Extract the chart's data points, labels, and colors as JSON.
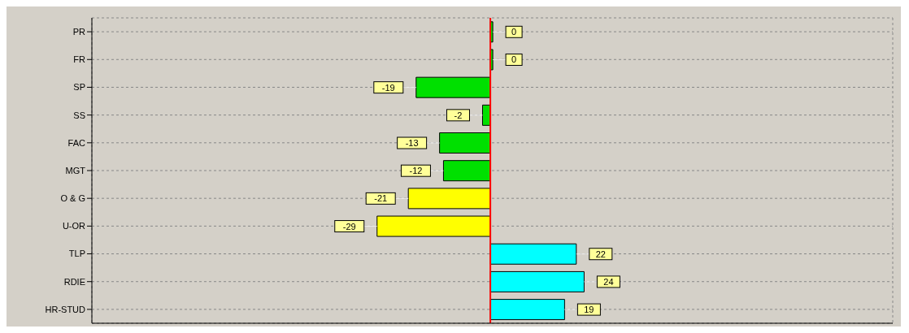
{
  "chart_data": {
    "type": "bar",
    "orientation": "horizontal",
    "categories": [
      "PR",
      "FR",
      "SP",
      "SS",
      "FAC",
      "MGT",
      "O & G",
      "U-OR",
      "TLP",
      "RDIE",
      "HR-STUD"
    ],
    "values": [
      0,
      0,
      -19,
      -2,
      -13,
      -12,
      -21,
      -29,
      22,
      24,
      19
    ],
    "colors": [
      "#00e000",
      "#00e000",
      "#00e000",
      "#00e000",
      "#00e000",
      "#00e000",
      "#ffff00",
      "#ffff00",
      "#00ffff",
      "#00ffff",
      "#00ffff"
    ],
    "xlim": [
      -102,
      103
    ],
    "ref_lines": [
      {
        "axis": "x",
        "value": 0,
        "color": "#ff0000"
      }
    ],
    "grid": true,
    "data_labels": true,
    "tick_labels": "y"
  }
}
